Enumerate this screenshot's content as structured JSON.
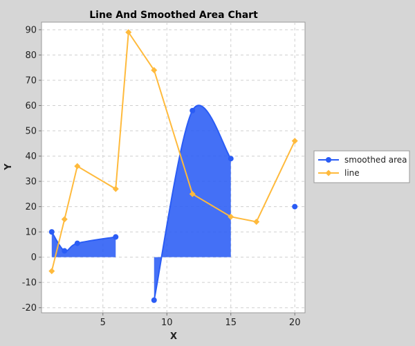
{
  "chart_data": {
    "type": "line",
    "title": "Line And Smoothed Area Chart",
    "xlabel": "X",
    "ylabel": "Y",
    "xlim": [
      0.2,
      20.8
    ],
    "ylim": [
      -22,
      93
    ],
    "x_ticks": [
      5,
      10,
      15,
      20
    ],
    "y_ticks": [
      -20,
      -10,
      0,
      10,
      20,
      30,
      40,
      50,
      60,
      70,
      80,
      90
    ],
    "grid": true,
    "legend_position": "right",
    "series": [
      {
        "name": "smoothed area",
        "kind": "smoothed-area",
        "color": "#2a5cf5",
        "segments": [
          [
            [
              1,
              10
            ],
            [
              2,
              2.5
            ],
            [
              3,
              5.5
            ],
            [
              6,
              8
            ]
          ],
          [
            [
              9,
              -17
            ],
            [
              12,
              58
            ],
            [
              15,
              39
            ]
          ],
          [
            [
              20,
              20
            ]
          ]
        ]
      },
      {
        "name": "line",
        "kind": "line",
        "color": "#ffba3c",
        "points": [
          [
            1,
            -5.5
          ],
          [
            2,
            15
          ],
          [
            3,
            36
          ],
          [
            6,
            27
          ],
          [
            7,
            89
          ],
          [
            9,
            74
          ],
          [
            12,
            25
          ],
          [
            15,
            16
          ],
          [
            17,
            14
          ],
          [
            20,
            46
          ]
        ]
      }
    ]
  }
}
